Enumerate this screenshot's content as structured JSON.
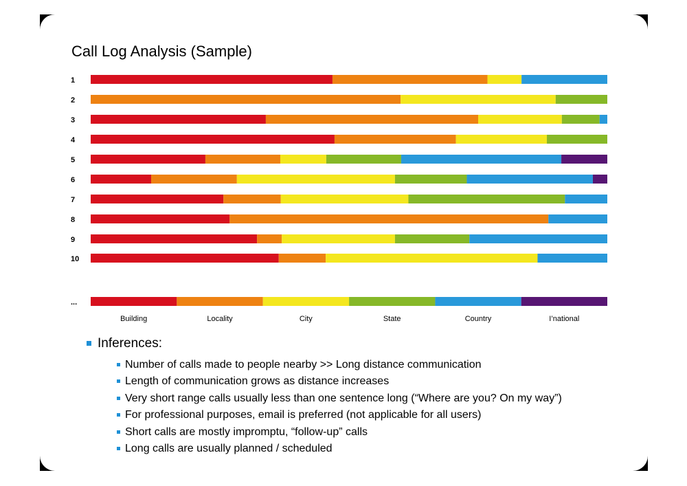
{
  "chart_data": {
    "type": "bar",
    "orientation": "horizontal",
    "stacked": true,
    "normalized": true,
    "title": "Call Log Analysis (Sample)",
    "series_names": [
      "Building",
      "Locality",
      "City",
      "State",
      "Country",
      "I'national"
    ],
    "series_labels": [
      "Building",
      "Locality",
      "City",
      "State",
      "Country",
      "I’national"
    ],
    "colors": [
      "#D7101E",
      "#EE8212",
      "#F4E71F",
      "#86B828",
      "#2999DA",
      "#571673"
    ],
    "rows": [
      {
        "label": "1",
        "values": [
          46.8,
          30.0,
          6.6,
          0,
          16.6,
          0
        ]
      },
      {
        "label": "2",
        "values": [
          0,
          60.0,
          30.0,
          10.0,
          0,
          0
        ]
      },
      {
        "label": "3",
        "values": [
          33.9,
          41.1,
          16.2,
          7.3,
          1.5,
          0
        ]
      },
      {
        "label": "4",
        "values": [
          47.2,
          23.5,
          17.6,
          11.7,
          0,
          0
        ]
      },
      {
        "label": "5",
        "values": [
          22.2,
          14.5,
          8.9,
          14.5,
          31.0,
          8.9
        ]
      },
      {
        "label": "6",
        "values": [
          11.7,
          16.6,
          30.6,
          13.9,
          24.4,
          2.8
        ]
      },
      {
        "label": "7",
        "values": [
          25.7,
          11.1,
          24.7,
          30.3,
          8.2,
          0
        ]
      },
      {
        "label": "8",
        "values": [
          26.9,
          61.7,
          0,
          0,
          11.4,
          0
        ]
      },
      {
        "label": "9",
        "values": [
          32.2,
          4.8,
          21.9,
          14.4,
          26.7,
          0
        ]
      },
      {
        "label": "10",
        "values": [
          36.4,
          9.1,
          41.0,
          0,
          13.5,
          0
        ]
      },
      {
        "label": "...",
        "values": [
          16.67,
          16.67,
          16.67,
          16.67,
          16.66,
          16.66
        ]
      }
    ],
    "xlim": [
      0,
      100
    ],
    "xlabel": "",
    "ylabel": "",
    "legend": "bottom"
  },
  "inferences": {
    "heading": "Inferences:",
    "items": [
      "Number of calls made to people nearby >> Long distance communication",
      "Length of communication grows as distance increases",
      "Very short range calls usually less than one sentence long (“Where are you? On my way”)",
      "For professional purposes, email is preferred (not applicable for all users)",
      "Short calls are mostly impromptu, “follow-up” calls",
      "Long calls are usually planned / scheduled"
    ]
  }
}
